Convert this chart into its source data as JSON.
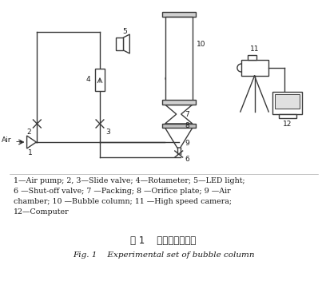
{
  "title_cn": "图 1    鼓泡塔实验装置",
  "title_en": "Fig. 1    Experimental set of bubble column",
  "caption_lines": [
    "1—Air pump; 2, 3—Slide valve; 4—Rotameter; 5—LED light;",
    "6 —Shut-off valve; 7 —Packing; 8 —Orifice plate; 9 —Air",
    "chamber; 10 —Bubble column; 11 —High speed camera;",
    "12—Computer"
  ],
  "bg_color": "#ffffff",
  "text_color": "#1a1a1a",
  "line_color": "#3a3a3a",
  "fig_width": 4.03,
  "fig_height": 3.52,
  "dpi": 100
}
